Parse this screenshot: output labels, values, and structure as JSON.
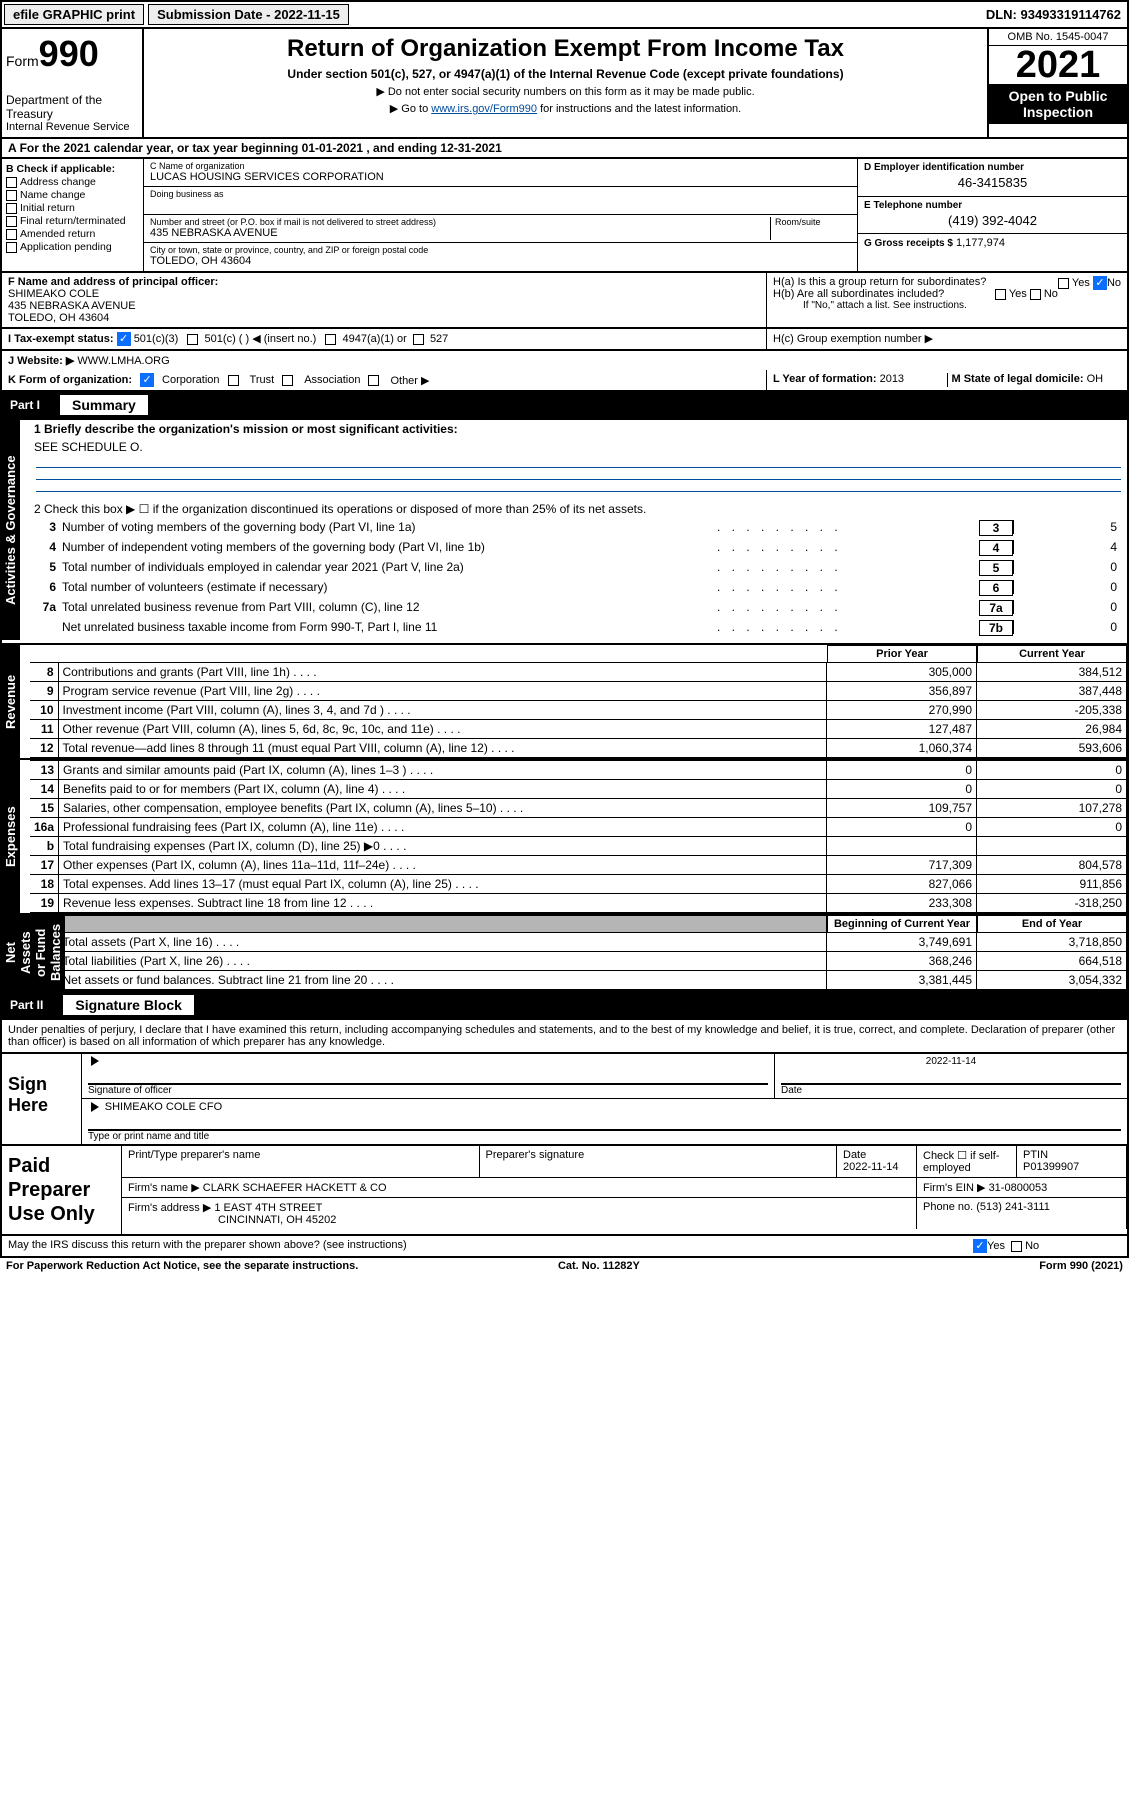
{
  "top": {
    "efile": "efile GRAPHIC print",
    "submission_label": "Submission Date - 2022-11-15",
    "dln": "DLN: 93493319114762"
  },
  "header": {
    "form_prefix": "Form",
    "form_num": "990",
    "dept": "Department of the Treasury",
    "irs": "Internal Revenue Service",
    "title": "Return of Organization Exempt From Income Tax",
    "sub": "Under section 501(c), 527, or 4947(a)(1) of the Internal Revenue Code (except private foundations)",
    "note1": "▶ Do not enter social security numbers on this form as it may be made public.",
    "note2_pre": "▶ Go to ",
    "note2_link": "www.irs.gov/Form990",
    "note2_post": " for instructions and the latest information.",
    "omb": "OMB No. 1545-0047",
    "year": "2021",
    "open": "Open to Public Inspection"
  },
  "A": "For the 2021 calendar year, or tax year beginning 01-01-2021   , and ending 12-31-2021",
  "B": {
    "title": "B Check if applicable:",
    "opts": [
      "Address change",
      "Name change",
      "Initial return",
      "Final return/terminated",
      "Amended return",
      "Application pending"
    ]
  },
  "C": {
    "name_lbl": "C Name of organization",
    "name": "LUCAS HOUSING SERVICES CORPORATION",
    "dba_lbl": "Doing business as",
    "dba": "",
    "addr_lbl": "Number and street (or P.O. box if mail is not delivered to street address)",
    "room_lbl": "Room/suite",
    "addr": "435 NEBRASKA AVENUE",
    "city_lbl": "City or town, state or province, country, and ZIP or foreign postal code",
    "city": "TOLEDO, OH  43604"
  },
  "D": {
    "lbl": "D Employer identification number",
    "val": "46-3415835"
  },
  "E": {
    "lbl": "E Telephone number",
    "val": "(419) 392-4042"
  },
  "G": {
    "lbl": "G Gross receipts $",
    "val": "1,177,974"
  },
  "F": {
    "lbl": "F  Name and address of principal officer:",
    "name": "SHIMEAKO COLE",
    "addr1": "435 NEBRASKA AVENUE",
    "addr2": "TOLEDO, OH  43604"
  },
  "H": {
    "a": "H(a)  Is this a group return for subordinates?",
    "a_yes": "Yes",
    "a_no": "No",
    "b": "H(b)  Are all subordinates included?",
    "b_yes": "Yes",
    "b_no": "No",
    "b_note": "If \"No,\" attach a list. See instructions.",
    "c": "H(c)  Group exemption number ▶"
  },
  "I": {
    "lbl": "I   Tax-exempt status:",
    "o1": "501(c)(3)",
    "o2": "501(c) (   ) ◀ (insert no.)",
    "o3": "4947(a)(1) or",
    "o4": "527"
  },
  "J": {
    "lbl": "J   Website: ▶",
    "val": "WWW.LMHA.ORG"
  },
  "K": {
    "lbl": "K Form of organization:",
    "o1": "Corporation",
    "o2": "Trust",
    "o3": "Association",
    "o4": "Other ▶"
  },
  "L": {
    "lbl": "L Year of formation:",
    "val": "2013"
  },
  "M": {
    "lbl": "M State of legal domicile:",
    "val": "OH"
  },
  "part1": {
    "num": "Part I",
    "title": "Summary"
  },
  "summary": {
    "l1": "1  Briefly describe the organization's mission or most significant activities:",
    "l1v": "SEE SCHEDULE O.",
    "l2": "2  Check this box ▶ ☐  if the organization discontinued its operations or disposed of more than 25% of its net assets.",
    "rows_top": [
      {
        "n": "3",
        "d": "Number of voting members of the governing body (Part VI, line 1a)",
        "b": "3",
        "v": "5"
      },
      {
        "n": "4",
        "d": "Number of independent voting members of the governing body (Part VI, line 1b)",
        "b": "4",
        "v": "4"
      },
      {
        "n": "5",
        "d": "Total number of individuals employed in calendar year 2021 (Part V, line 2a)",
        "b": "5",
        "v": "0"
      },
      {
        "n": "6",
        "d": "Total number of volunteers (estimate if necessary)",
        "b": "6",
        "v": "0"
      },
      {
        "n": "7a",
        "d": "Total unrelated business revenue from Part VIII, column (C), line 12",
        "b": "7a",
        "v": "0"
      },
      {
        "n": "",
        "d": "Net unrelated business taxable income from Form 990-T, Part I, line 11",
        "b": "7b",
        "v": "0"
      }
    ],
    "hdr_prior": "Prior Year",
    "hdr_current": "Current Year",
    "revenue": [
      {
        "n": "8",
        "d": "Contributions and grants (Part VIII, line 1h)",
        "p": "305,000",
        "c": "384,512"
      },
      {
        "n": "9",
        "d": "Program service revenue (Part VIII, line 2g)",
        "p": "356,897",
        "c": "387,448"
      },
      {
        "n": "10",
        "d": "Investment income (Part VIII, column (A), lines 3, 4, and 7d )",
        "p": "270,990",
        "c": "-205,338"
      },
      {
        "n": "11",
        "d": "Other revenue (Part VIII, column (A), lines 5, 6d, 8c, 9c, 10c, and 11e)",
        "p": "127,487",
        "c": "26,984"
      },
      {
        "n": "12",
        "d": "Total revenue—add lines 8 through 11 (must equal Part VIII, column (A), line 12)",
        "p": "1,060,374",
        "c": "593,606"
      }
    ],
    "expenses": [
      {
        "n": "13",
        "d": "Grants and similar amounts paid (Part IX, column (A), lines 1–3 )",
        "p": "0",
        "c": "0"
      },
      {
        "n": "14",
        "d": "Benefits paid to or for members (Part IX, column (A), line 4)",
        "p": "0",
        "c": "0"
      },
      {
        "n": "15",
        "d": "Salaries, other compensation, employee benefits (Part IX, column (A), lines 5–10)",
        "p": "109,757",
        "c": "107,278"
      },
      {
        "n": "16a",
        "d": "Professional fundraising fees (Part IX, column (A), line 11e)",
        "p": "0",
        "c": "0"
      },
      {
        "n": "b",
        "d": "Total fundraising expenses (Part IX, column (D), line 25) ▶0",
        "p": "",
        "c": "",
        "shade": true
      },
      {
        "n": "17",
        "d": "Other expenses (Part IX, column (A), lines 11a–11d, 11f–24e)",
        "p": "717,309",
        "c": "804,578"
      },
      {
        "n": "18",
        "d": "Total expenses. Add lines 13–17 (must equal Part IX, column (A), line 25)",
        "p": "827,066",
        "c": "911,856"
      },
      {
        "n": "19",
        "d": "Revenue less expenses. Subtract line 18 from line 12",
        "p": "233,308",
        "c": "-318,250"
      }
    ],
    "hdr_boy": "Beginning of Current Year",
    "hdr_eoy": "End of Year",
    "netassets": [
      {
        "n": "20",
        "d": "Total assets (Part X, line 16)",
        "p": "3,749,691",
        "c": "3,718,850"
      },
      {
        "n": "21",
        "d": "Total liabilities (Part X, line 26)",
        "p": "368,246",
        "c": "664,518"
      },
      {
        "n": "22",
        "d": "Net assets or fund balances. Subtract line 21 from line 20",
        "p": "3,381,445",
        "c": "3,054,332"
      }
    ]
  },
  "tabs": {
    "gov": "Activities & Governance",
    "rev": "Revenue",
    "exp": "Expenses",
    "net": "Net Assets or Fund Balances"
  },
  "part2": {
    "num": "Part II",
    "title": "Signature Block"
  },
  "penalties": "Under penalties of perjury, I declare that I have examined this return, including accompanying schedules and statements, and to the best of my knowledge and belief, it is true, correct, and complete. Declaration of preparer (other than officer) is based on all information of which preparer has any knowledge.",
  "sign": {
    "here": "Sign Here",
    "sig_officer": "Signature of officer",
    "date_lbl": "Date",
    "date": "2022-11-14",
    "name": "SHIMEAKO COLE  CFO",
    "type_lbl": "Type or print name and title"
  },
  "paid": {
    "title": "Paid Preparer Use Only",
    "h1": "Print/Type preparer's name",
    "h2": "Preparer's signature",
    "h3": "Date",
    "h3v": "2022-11-14",
    "h4": "Check ☐ if self-employed",
    "h5": "PTIN",
    "h5v": "P01399907",
    "firm_name_lbl": "Firm's name    ▶",
    "firm_name": "CLARK SCHAEFER HACKETT & CO",
    "firm_ein_lbl": "Firm's EIN ▶",
    "firm_ein": "31-0800053",
    "firm_addr_lbl": "Firm's address ▶",
    "firm_addr1": "1 EAST 4TH STREET",
    "firm_addr2": "CINCINNATI, OH  45202",
    "phone_lbl": "Phone no.",
    "phone": "(513) 241-3111"
  },
  "may_discuss": "May the IRS discuss this return with the preparer shown above? (see instructions)",
  "md_yes": "Yes",
  "md_no": "No",
  "foot": {
    "l": "For Paperwork Reduction Act Notice, see the separate instructions.",
    "m": "Cat. No. 11282Y",
    "r": "Form 990 (2021)"
  }
}
